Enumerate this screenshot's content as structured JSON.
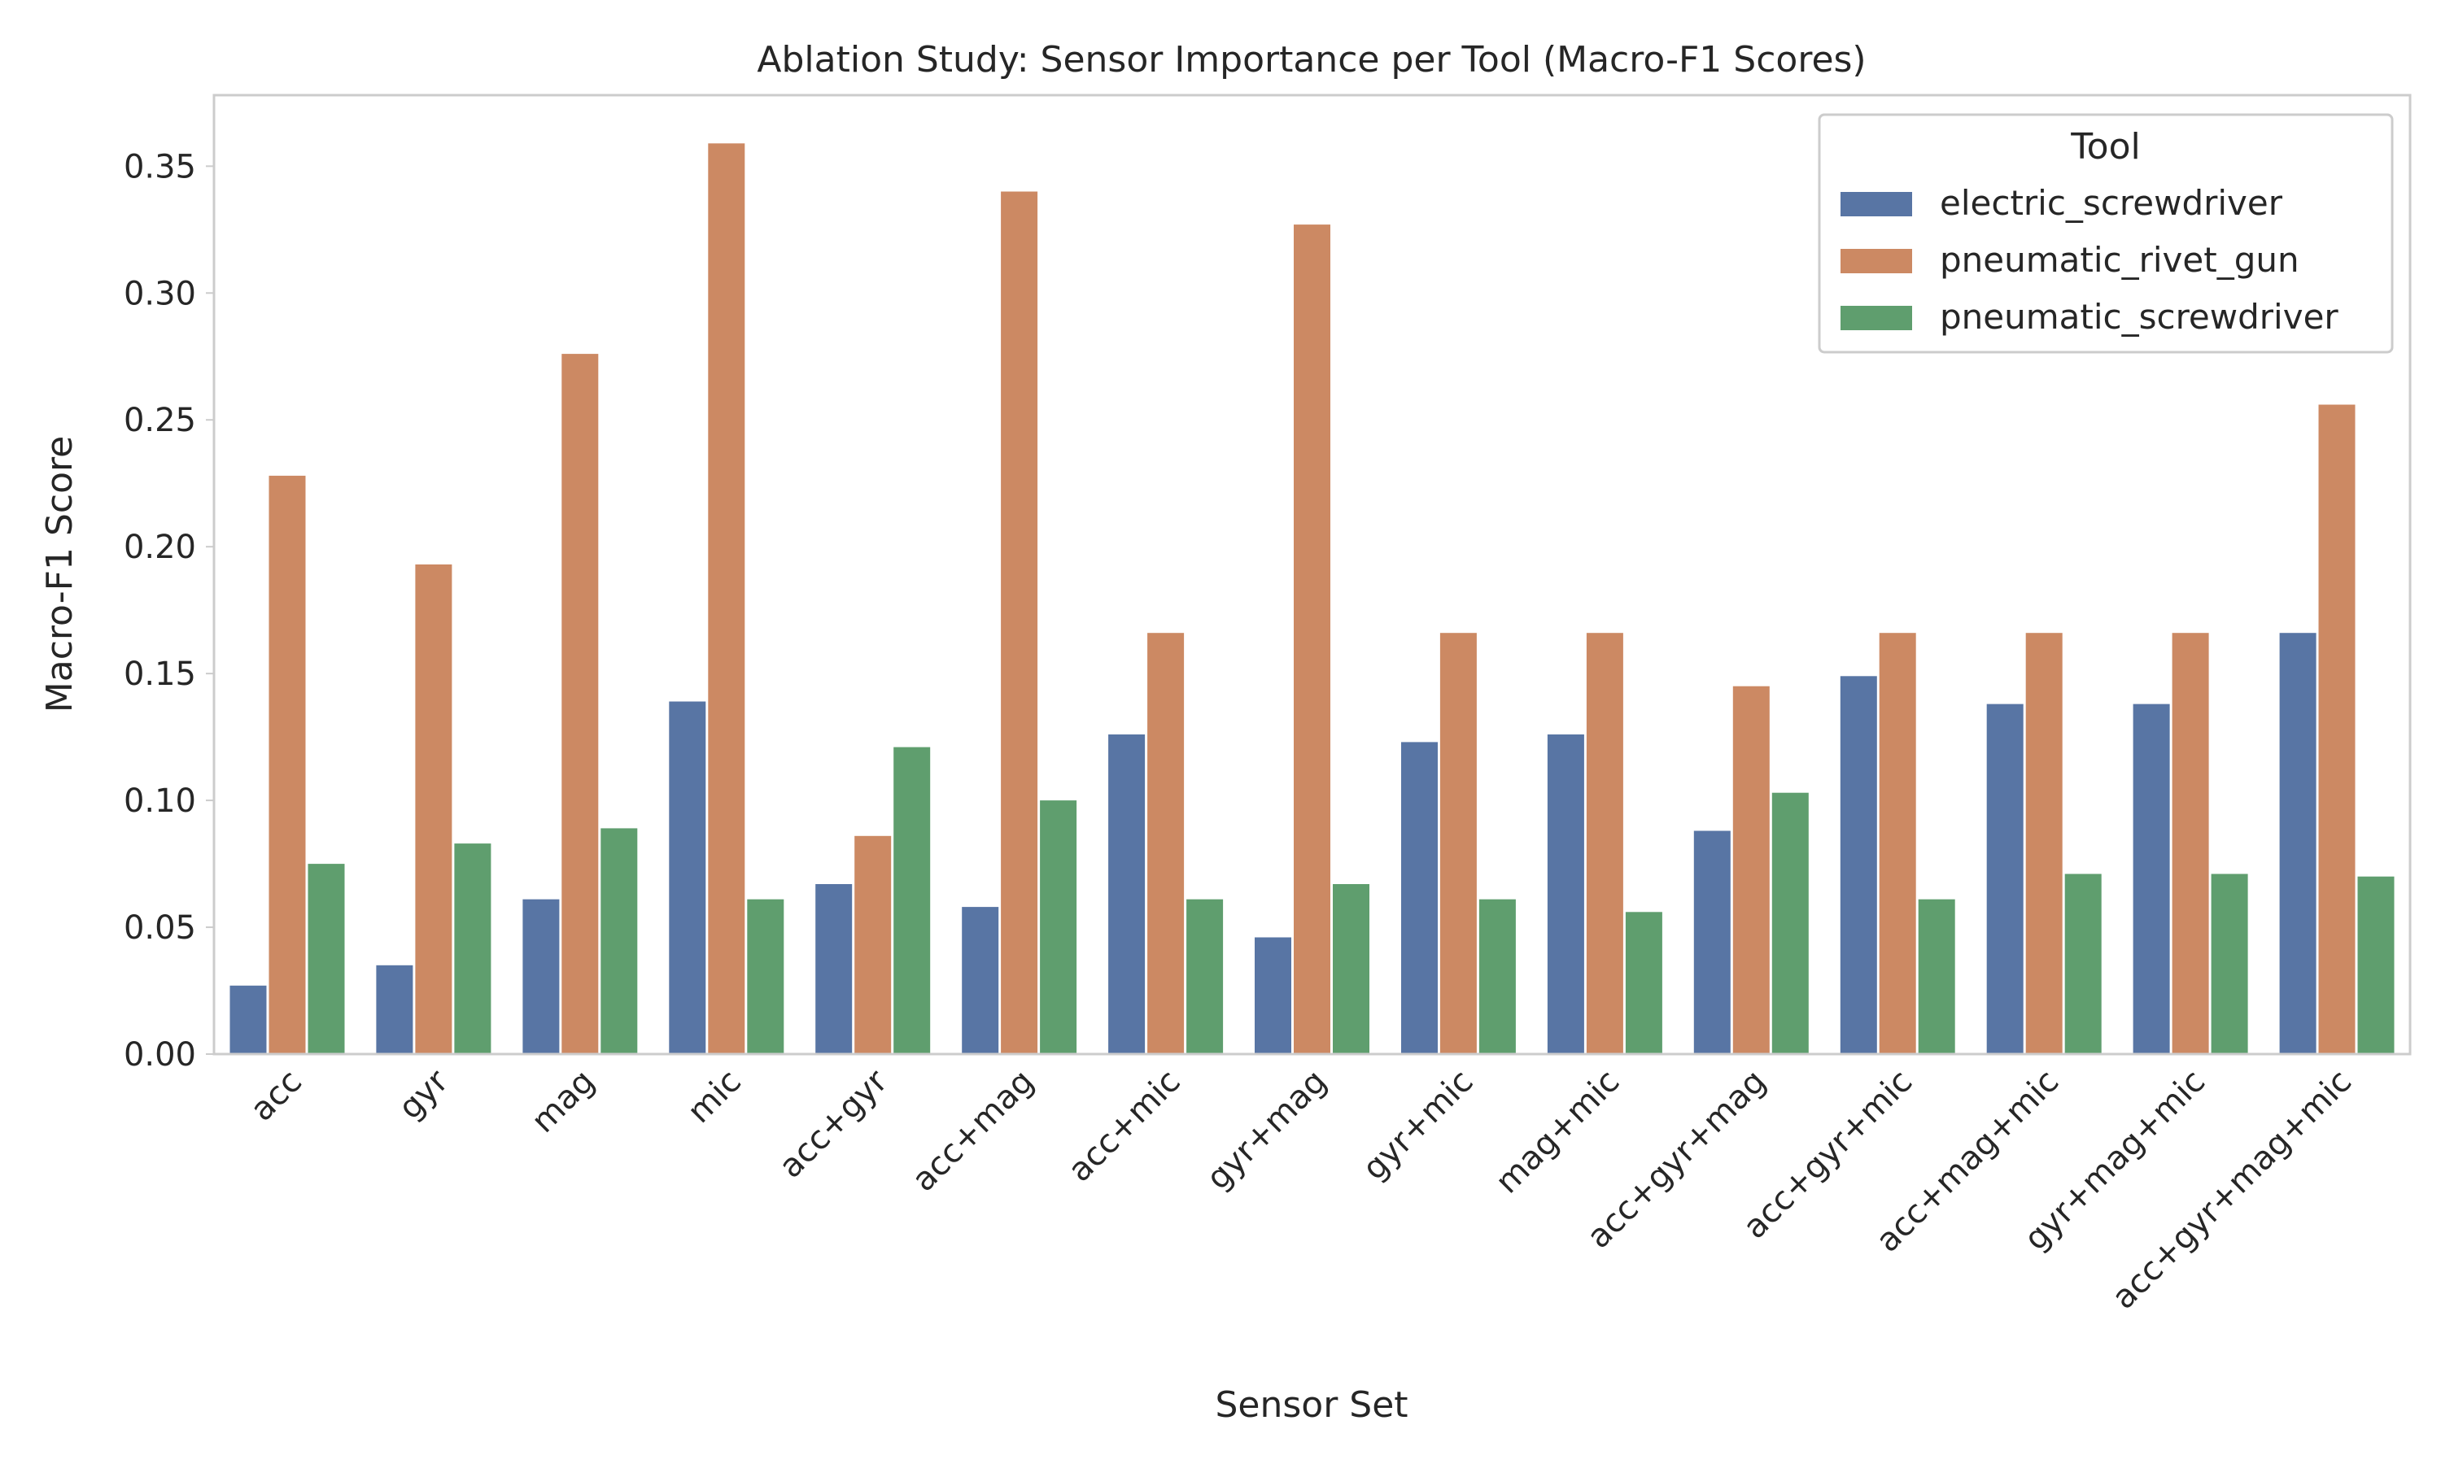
{
  "chart_data": {
    "type": "bar",
    "title": "Ablation Study: Sensor Importance per Tool (Macro-F1 Scores)",
    "xlabel": "Sensor Set",
    "ylabel": "Macro-F1 Score",
    "ylim": [
      0,
      0.378
    ],
    "yticks": [
      0.0,
      0.05,
      0.1,
      0.15,
      0.2,
      0.25,
      0.3,
      0.35
    ],
    "ytick_labels": [
      "0.00",
      "0.05",
      "0.10",
      "0.15",
      "0.20",
      "0.25",
      "0.30",
      "0.35"
    ],
    "grid": false,
    "legend": {
      "title": "Tool",
      "placement": "top-right"
    },
    "categories": [
      "acc",
      "gyr",
      "mag",
      "mic",
      "acc+gyr",
      "acc+mag",
      "acc+mic",
      "gyr+mag",
      "gyr+mic",
      "mag+mic",
      "acc+gyr+mag",
      "acc+gyr+mic",
      "acc+mag+mic",
      "gyr+mag+mic",
      "acc+gyr+mag+mic"
    ],
    "series": [
      {
        "name": "electric_screwdriver",
        "color": "#5875a4",
        "values": [
          0.027,
          0.035,
          0.061,
          0.139,
          0.067,
          0.058,
          0.126,
          0.046,
          0.123,
          0.126,
          0.088,
          0.149,
          0.138,
          0.138,
          0.166
        ]
      },
      {
        "name": "pneumatic_rivet_gun",
        "color": "#cc8963",
        "values": [
          0.228,
          0.193,
          0.276,
          0.359,
          0.086,
          0.34,
          0.166,
          0.327,
          0.166,
          0.166,
          0.145,
          0.166,
          0.166,
          0.166,
          0.256
        ]
      },
      {
        "name": "pneumatic_screwdriver",
        "color": "#5f9e6e",
        "values": [
          0.075,
          0.083,
          0.089,
          0.061,
          0.121,
          0.1,
          0.061,
          0.067,
          0.061,
          0.056,
          0.103,
          0.061,
          0.071,
          0.071,
          0.07
        ]
      }
    ]
  }
}
